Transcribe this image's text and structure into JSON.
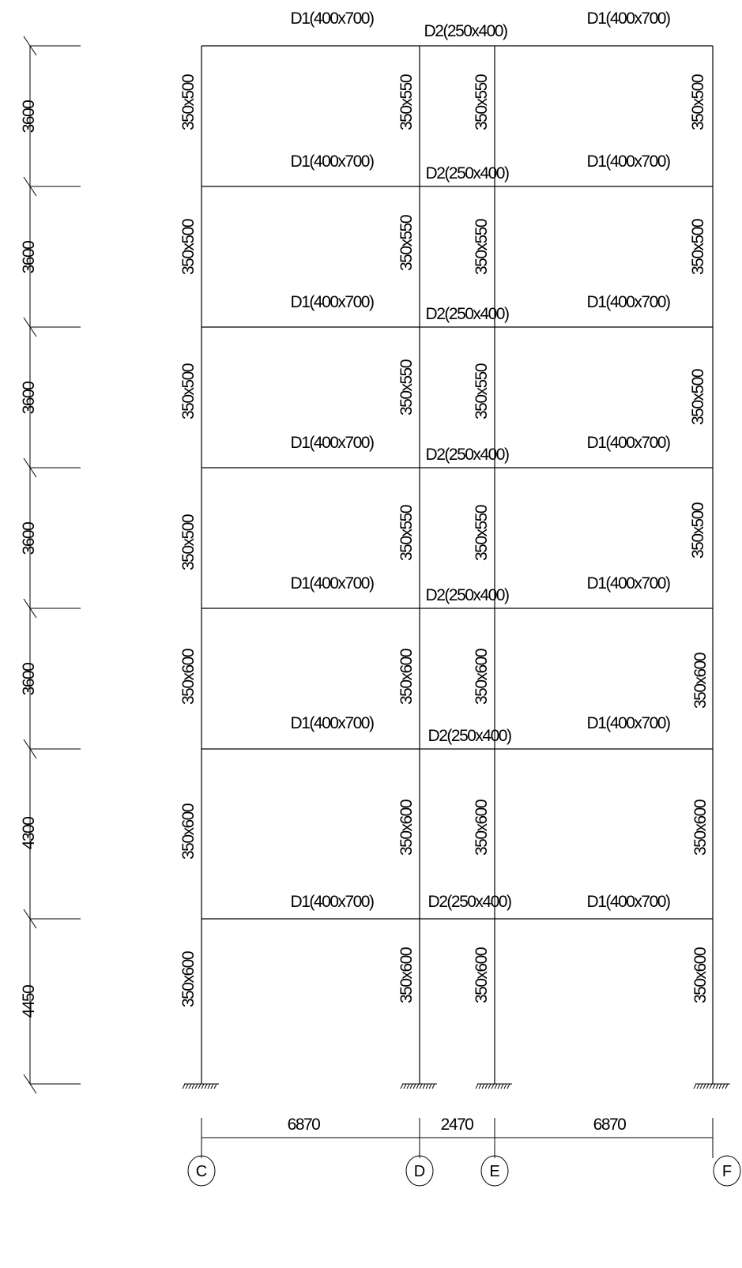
{
  "axes": [
    "C",
    "D",
    "E",
    "F"
  ],
  "spans": [
    "6870",
    "2470",
    "6870"
  ],
  "storeys": [
    {
      "height": "3600",
      "beam_left": "D1(400x700)",
      "beam_mid": "D2(250x400)",
      "beam_right": "D1(400x700)",
      "col_c": "350x500",
      "col_d": "350x550",
      "col_e": "350x550",
      "col_f": "350x500"
    },
    {
      "height": "3600",
      "beam_left": "D1(400x700)",
      "beam_mid": "D2(250x400)",
      "beam_right": "D1(400x700)",
      "col_c": "350x500",
      "col_d": "350x550",
      "col_e": "350x550",
      "col_f": "350x500"
    },
    {
      "height": "3600",
      "beam_left": "D1(400x700)",
      "beam_mid": "D2(250x400)",
      "beam_right": "D1(400x700)",
      "col_c": "350x500",
      "col_d": "350x550",
      "col_e": "350x550",
      "col_f": "350x500"
    },
    {
      "height": "3600",
      "beam_left": "D1(400x700)",
      "beam_mid": "D2(250x400)",
      "beam_right": "D1(400x700)",
      "col_c": "350x500",
      "col_d": "350x550",
      "col_e": "350x550",
      "col_f": "350x500"
    },
    {
      "height": "3600",
      "beam_left": "D1(400x700)",
      "beam_mid": "D2(250x400)",
      "beam_right": "D1(400x700)",
      "col_c": "350x600",
      "col_d": "350x600",
      "col_e": "350x600",
      "col_f": "350x600"
    },
    {
      "height": "4300",
      "beam_left": "D1(400x700)",
      "beam_mid": "D2(250x400)",
      "beam_right": "D1(400x700)",
      "col_c": "350x600",
      "col_d": "350x600",
      "col_e": "350x600",
      "col_f": "350x600"
    },
    {
      "height": "4450",
      "beam_left": "D1(400x700)",
      "beam_mid": "D2(250x400)",
      "beam_right": "D1(400x700)",
      "col_c": "350x600",
      "col_d": "350x600",
      "col_e": "350x600",
      "col_f": "350x600"
    }
  ]
}
